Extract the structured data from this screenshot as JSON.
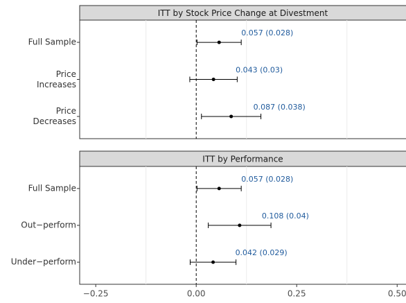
{
  "chart_data": [
    {
      "type": "forest",
      "title": "ITT by Stock Price Change at Divestment",
      "categories": [
        "Full Sample",
        "Price\nIncreases",
        "Price\nDecreases"
      ],
      "values": [
        0.057,
        0.043,
        0.087
      ],
      "ci_low": [
        0.002,
        -0.016,
        0.013
      ],
      "ci_high": [
        0.112,
        0.102,
        0.161
      ],
      "value_labels": [
        "0.057 (0.028)",
        "0.043 (0.03)",
        "0.087 (0.038)"
      ],
      "color": "#000000",
      "label_color": "#1f5a9c",
      "xlim": [
        -0.29,
        0.522
      ],
      "xgrid": [
        -0.125,
        0.125,
        0.375
      ],
      "reference_line": 0
    },
    {
      "type": "forest",
      "title": "ITT by Performance",
      "categories": [
        "Full Sample",
        "Out−perform",
        "Under−perform"
      ],
      "values": [
        0.057,
        0.108,
        0.042
      ],
      "ci_low": [
        0.002,
        0.03,
        -0.015
      ],
      "ci_high": [
        0.112,
        0.186,
        0.099
      ],
      "value_labels": [
        "0.057 (0.028)",
        "0.108 (0.04)",
        "0.042 (0.029)"
      ],
      "color": "#000000",
      "label_color": "#1f5a9c",
      "xlim": [
        -0.29,
        0.522
      ],
      "xgrid": [
        -0.125,
        0.125,
        0.375
      ],
      "reference_line": 0,
      "xticks": [
        {
          "value": -0.25,
          "label": "−0.25"
        },
        {
          "value": 0,
          "label": "0.00"
        },
        {
          "value": 0.25,
          "label": "0.25"
        },
        {
          "value": 0.5,
          "label": "0.50"
        }
      ]
    }
  ]
}
